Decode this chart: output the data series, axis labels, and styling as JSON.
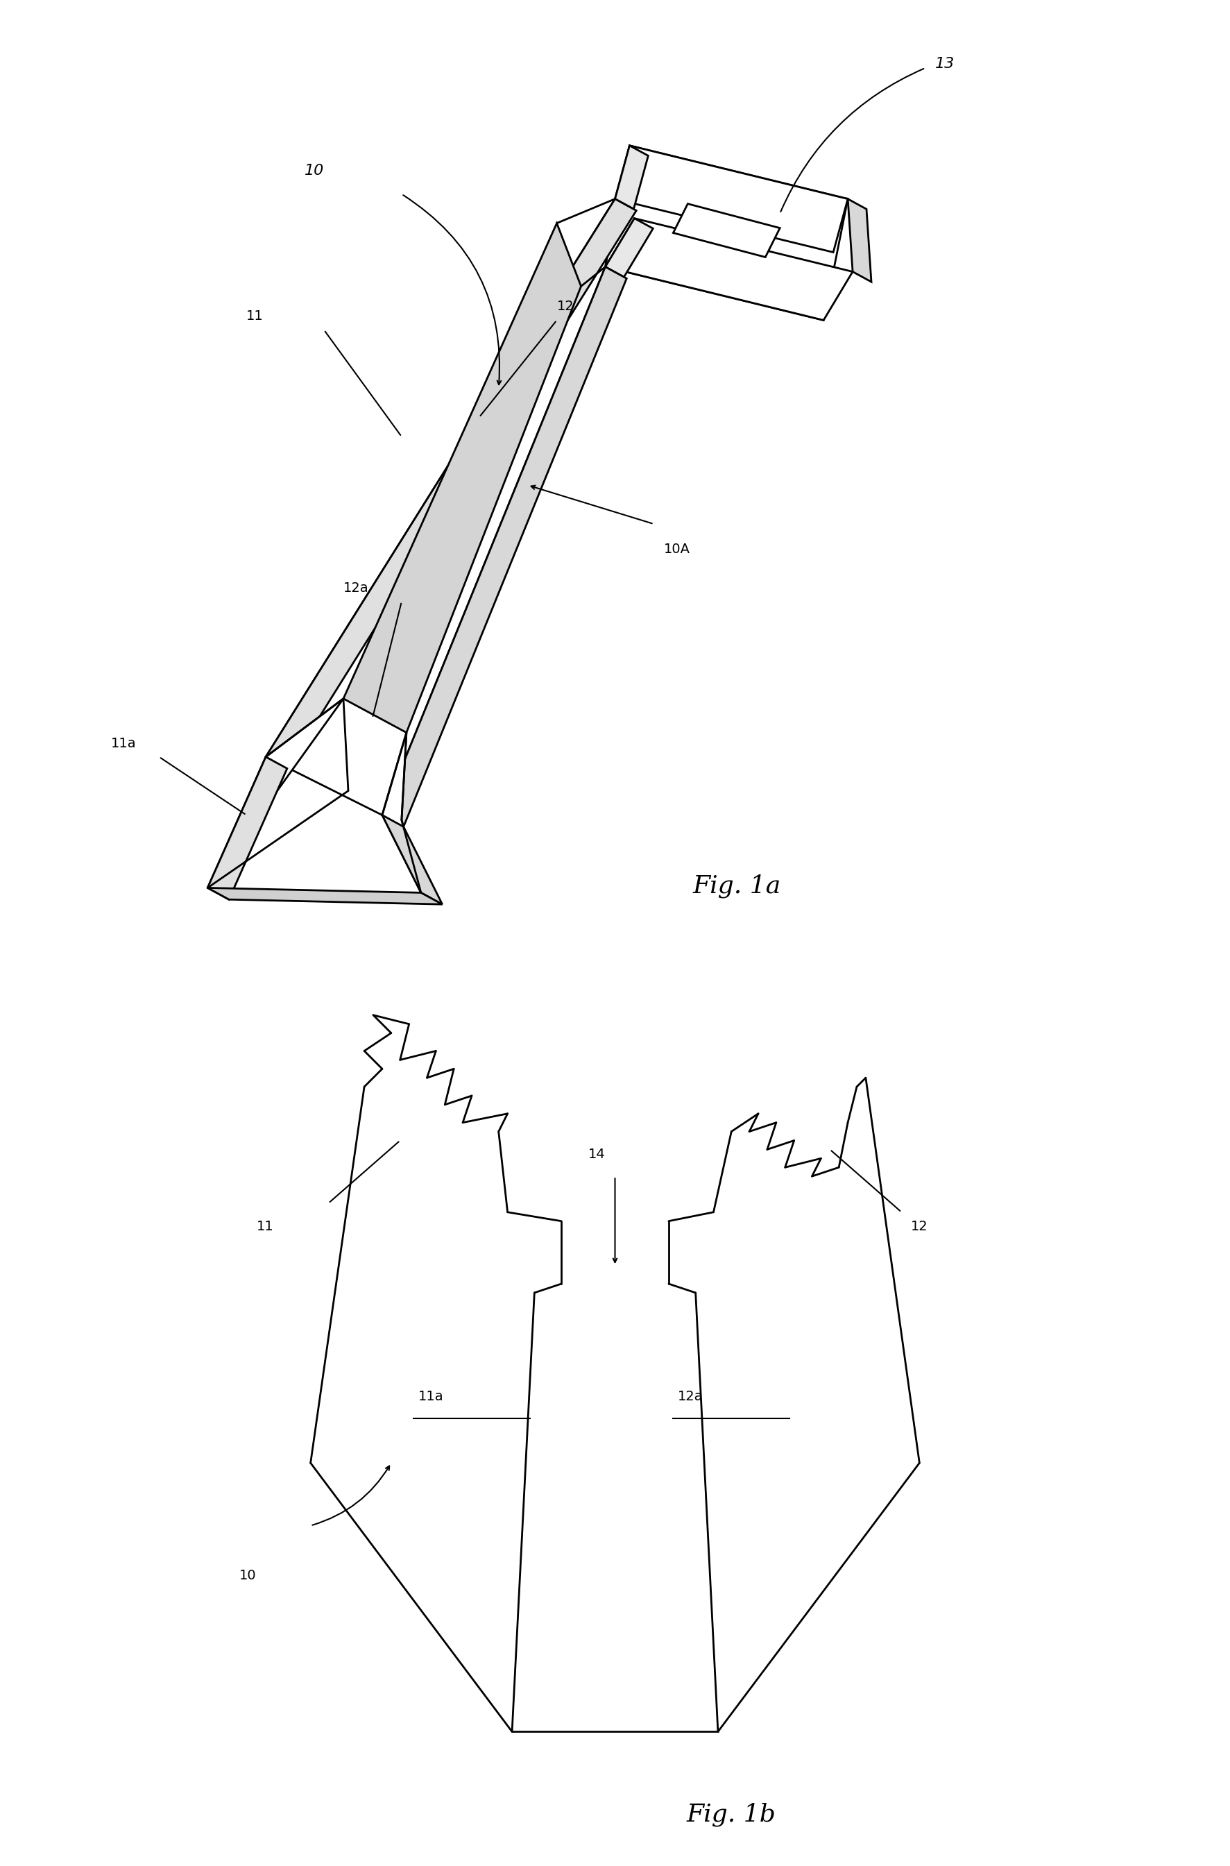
{
  "fig_width": 17.73,
  "fig_height": 26.89,
  "bg_color": "#ffffff",
  "line_color": "#000000",
  "line_width": 2.0,
  "fig1a_label": "Fig. 1a",
  "fig1b_label": "Fig. 1b",
  "labels": {
    "10_top": "10",
    "13": "13",
    "11": "11",
    "12": "12",
    "12a": "12a",
    "10A": "10A",
    "11a": "11a",
    "10_bot": "10",
    "11_bot": "11",
    "12_bot": "12",
    "11a_bot": "11a",
    "12a_bot": "12a",
    "14": "14"
  }
}
